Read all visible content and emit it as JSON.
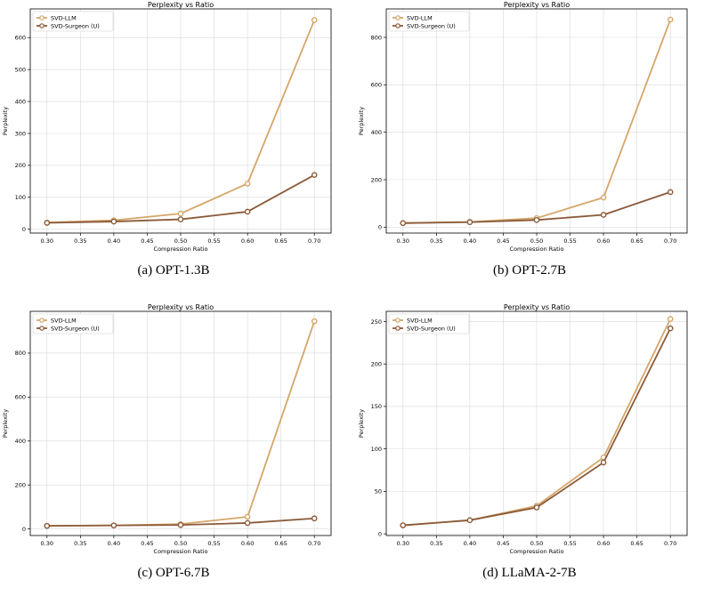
{
  "colors": {
    "svd_llm": "#d4a66a",
    "svd_surgeon": "#8b5a3a",
    "grid": "#d9d9d9"
  },
  "chart_data": [
    {
      "type": "line",
      "title": "Perplexity vs Ratio",
      "xlabel": "Compression Ratio",
      "ylabel": "Perplexity",
      "caption": "(a) OPT-1.3B",
      "x": [
        0.3,
        0.4,
        0.5,
        0.6,
        0.7
      ],
      "xticks": [
        0.3,
        0.35,
        0.4,
        0.45,
        0.5,
        0.55,
        0.6,
        0.65,
        0.7
      ],
      "xtick_labels": [
        "0.30",
        "0.35",
        "0.40",
        "0.45",
        "0.50",
        "0.55",
        "0.60",
        "0.65",
        "0.70"
      ],
      "xlim": [
        0.275,
        0.725
      ],
      "ylim": [
        -12,
        690
      ],
      "yticks": [
        0,
        100,
        200,
        300,
        400,
        500,
        600
      ],
      "grid": true,
      "legend": "upper-left",
      "series": [
        {
          "name": "SVD-LLM",
          "values": [
            21,
            28,
            49,
            143,
            655
          ]
        },
        {
          "name": "SVD-Surgeon (U)",
          "values": [
            20,
            24,
            31,
            55,
            170
          ]
        }
      ]
    },
    {
      "type": "line",
      "title": "Perplexity vs Ratio",
      "xlabel": "Compression Ratio",
      "ylabel": "Perplexity",
      "caption": "(b) OPT-2.7B",
      "x": [
        0.3,
        0.4,
        0.5,
        0.6,
        0.7
      ],
      "xticks": [
        0.3,
        0.35,
        0.4,
        0.45,
        0.5,
        0.55,
        0.6,
        0.65,
        0.7
      ],
      "xtick_labels": [
        "0.30",
        "0.35",
        "0.40",
        "0.45",
        "0.50",
        "0.55",
        "0.60",
        "0.65",
        "0.70"
      ],
      "xlim": [
        0.275,
        0.725
      ],
      "ylim": [
        -25,
        920
      ],
      "yticks": [
        0,
        200,
        400,
        600,
        800
      ],
      "grid": true,
      "legend": "upper-left",
      "series": [
        {
          "name": "SVD-LLM",
          "values": [
            17,
            22,
            38,
            125,
            875
          ]
        },
        {
          "name": "SVD-Surgeon (U)",
          "values": [
            17,
            21,
            30,
            52,
            148
          ]
        }
      ]
    },
    {
      "type": "line",
      "title": "Perplexity vs Ratio",
      "xlabel": "Compression Ratio",
      "ylabel": "Perplexity",
      "caption": "(c) OPT-6.7B",
      "x": [
        0.3,
        0.4,
        0.5,
        0.6,
        0.7
      ],
      "xticks": [
        0.3,
        0.35,
        0.4,
        0.45,
        0.5,
        0.55,
        0.6,
        0.65,
        0.7
      ],
      "xtick_labels": [
        "0.30",
        "0.35",
        "0.40",
        "0.45",
        "0.50",
        "0.55",
        "0.60",
        "0.65",
        "0.70"
      ],
      "xlim": [
        0.275,
        0.725
      ],
      "ylim": [
        -30,
        990
      ],
      "yticks": [
        0,
        200,
        400,
        600,
        800
      ],
      "grid": true,
      "legend": "upper-left",
      "series": [
        {
          "name": "SVD-LLM",
          "values": [
            14,
            16,
            22,
            55,
            945
          ]
        },
        {
          "name": "SVD-Surgeon (U)",
          "values": [
            14,
            16,
            18,
            27,
            48
          ]
        }
      ]
    },
    {
      "type": "line",
      "title": "Perplexity vs Ratio",
      "xlabel": "Compression Ratio",
      "ylabel": "Perplexity",
      "caption": "(d) LLaMA-2-7B",
      "x": [
        0.3,
        0.4,
        0.5,
        0.6,
        0.7
      ],
      "xticks": [
        0.3,
        0.35,
        0.4,
        0.45,
        0.5,
        0.55,
        0.6,
        0.65,
        0.7
      ],
      "xtick_labels": [
        "0.30",
        "0.35",
        "0.40",
        "0.45",
        "0.50",
        "0.55",
        "0.60",
        "0.65",
        "0.70"
      ],
      "xlim": [
        0.275,
        0.725
      ],
      "ylim": [
        -2,
        262
      ],
      "yticks": [
        0,
        50,
        100,
        150,
        200,
        250
      ],
      "grid": true,
      "legend": "upper-left",
      "series": [
        {
          "name": "SVD-LLM",
          "values": [
            10,
            16,
            33,
            90,
            253
          ]
        },
        {
          "name": "SVD-Surgeon (U)",
          "values": [
            10,
            16,
            31,
            84,
            242
          ]
        }
      ]
    }
  ]
}
